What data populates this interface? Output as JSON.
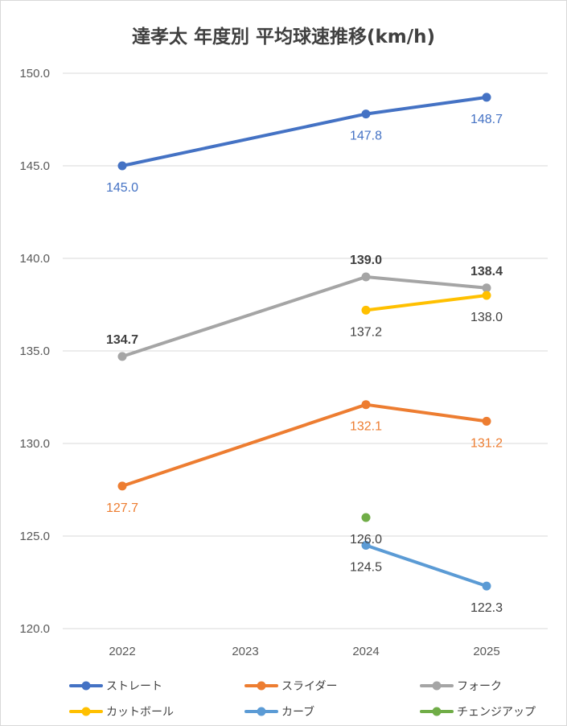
{
  "chart_data": {
    "type": "line",
    "title": "達孝太 年度別 平均球速推移(km/h)",
    "xlabel": "",
    "ylabel": "",
    "categories": [
      "2022",
      "2023",
      "2024",
      "2025"
    ],
    "ylim": [
      120.0,
      150.0
    ],
    "yticks": [
      "120.0",
      "125.0",
      "130.0",
      "135.0",
      "140.0",
      "145.0",
      "150.0"
    ],
    "grid": true,
    "legend_position": "bottom",
    "series": [
      {
        "name": "ストレート",
        "color": "#4472c4",
        "values": [
          145.0,
          null,
          147.8,
          148.7
        ],
        "labels": [
          "145.0",
          "",
          "147.8",
          "148.7"
        ],
        "label_pos": [
          "below",
          "",
          "below",
          "below"
        ],
        "bold_labels": false
      },
      {
        "name": "スライダー",
        "color": "#ed7d31",
        "values": [
          127.7,
          null,
          132.1,
          131.2
        ],
        "labels": [
          "127.7",
          "",
          "132.1",
          "131.2"
        ],
        "label_pos": [
          "below",
          "",
          "below",
          "below"
        ],
        "bold_labels": false
      },
      {
        "name": "フォーク",
        "color": "#a5a5a5",
        "values": [
          134.7,
          null,
          139.0,
          138.4
        ],
        "labels": [
          "134.7",
          "",
          "139.0",
          "138.4"
        ],
        "label_pos": [
          "above",
          "",
          "above",
          "above"
        ],
        "bold_labels": true
      },
      {
        "name": "カットボール",
        "color": "#ffc000",
        "values": [
          null,
          null,
          137.2,
          138.0
        ],
        "labels": [
          "",
          "",
          "137.2",
          "138.0"
        ],
        "label_pos": [
          "",
          "",
          "below",
          "below"
        ],
        "bold_labels": false
      },
      {
        "name": "カーブ",
        "color": "#5b9bd5",
        "values": [
          null,
          null,
          124.5,
          122.3
        ],
        "labels": [
          "",
          "",
          "124.5",
          "122.3"
        ],
        "label_pos": [
          "",
          "",
          "below",
          "below"
        ],
        "bold_labels": false
      },
      {
        "name": "チェンジアップ",
        "color": "#70ad47",
        "values": [
          null,
          null,
          126.0,
          null
        ],
        "labels": [
          "",
          "",
          "126.0",
          ""
        ],
        "label_pos": [
          "",
          "",
          "below",
          ""
        ],
        "bold_labels": false
      }
    ]
  }
}
